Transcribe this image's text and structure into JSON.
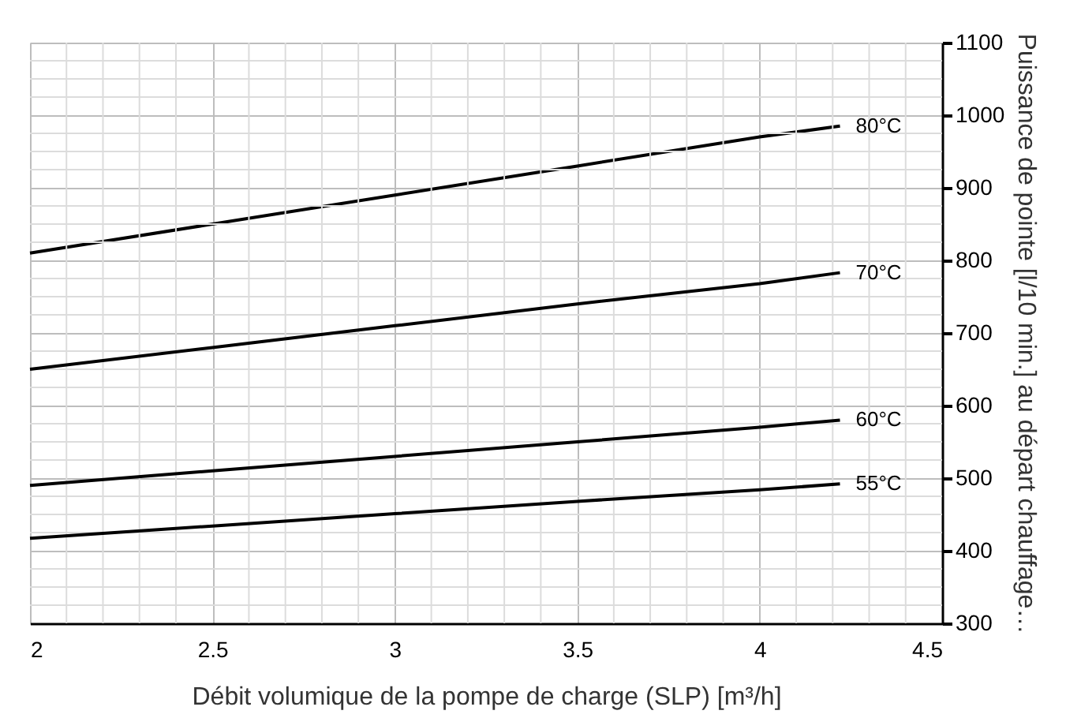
{
  "chart_data": {
    "type": "line",
    "xlabel": "Débit volumique de la pompe de charge (SLP) [m³/h]",
    "ylabel": "Puissance de pointe [l/10 min.] au départ chauffage…",
    "x": [
      2,
      2.5,
      3,
      3.5,
      4,
      4.22
    ],
    "series": [
      {
        "name": "80°C",
        "color": "#000000",
        "values": [
          810,
          850,
          890,
          930,
          970,
          985
        ]
      },
      {
        "name": "70°C",
        "color": "#000000",
        "values": [
          650,
          680,
          710,
          740,
          768,
          783
        ]
      },
      {
        "name": "60°C",
        "color": "#000000",
        "values": [
          490,
          510,
          530,
          550,
          570,
          580
        ]
      },
      {
        "name": "55°C",
        "color": "#000000",
        "values": [
          417,
          434,
          451,
          468,
          484,
          492
        ]
      }
    ],
    "xlim": [
      2,
      4.5
    ],
    "xticks": [
      2,
      2.5,
      3,
      3.5,
      4,
      4.5
    ],
    "ylim": [
      300,
      1100
    ],
    "yticks": [
      300,
      400,
      500,
      600,
      700,
      800,
      900,
      1000,
      1100
    ],
    "grid": true,
    "legend": false,
    "marker": "none",
    "line_style": "solid"
  }
}
